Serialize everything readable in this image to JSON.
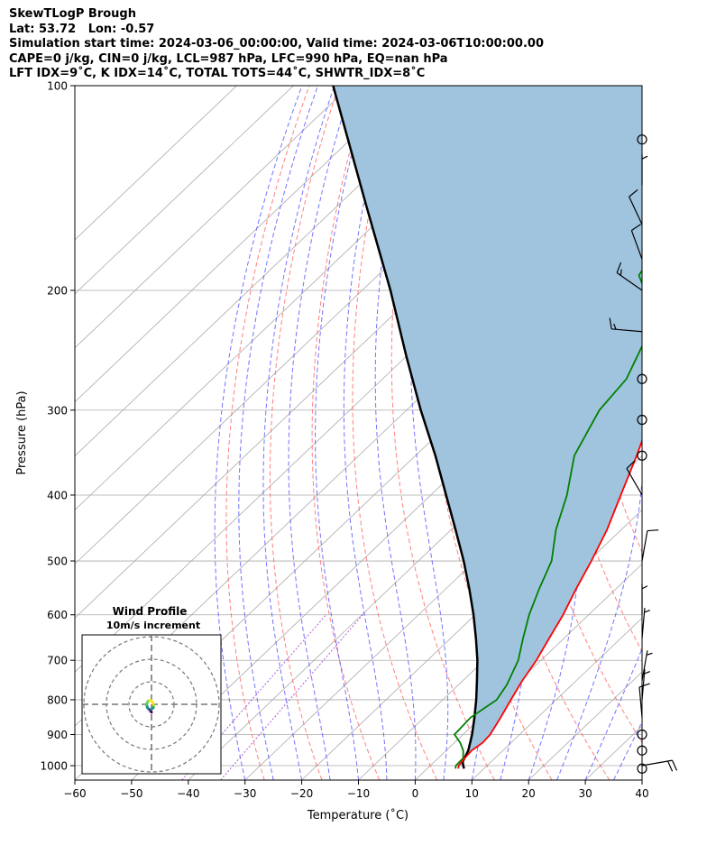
{
  "header": {
    "line1": "SkewTLogP Brough",
    "line2": "Lat: 53.72   Lon: -0.57",
    "line3": "Simulation start time: 2024-03-06_00:00:00, Valid time: 2024-03-06T10:00:00.00",
    "line4": "CAPE=0 j/kg, CIN=0 j/kg, LCL=987 hPa, LFC=990 hPa, EQ=nan hPa",
    "line5": "LFT IDX=9˚C, K IDX=14˚C, TOTAL TOTS=44˚C, SHWTR_IDX=8˚C"
  },
  "chart_data": {
    "type": "line",
    "xlabel": "Temperature (˚C)",
    "ylabel": "Pressure (hPa)",
    "xlim": [
      -60,
      40
    ],
    "ylim": [
      1050,
      100
    ],
    "y_scale": "log",
    "x_ticks": [
      "−60",
      "−50",
      "−40",
      "−30",
      "−20",
      "−10",
      "0",
      "10",
      "20",
      "30",
      "40"
    ],
    "x_tick_values": [
      -60,
      -50,
      -40,
      -30,
      -20,
      -10,
      0,
      10,
      20,
      30,
      40
    ],
    "y_ticks": [
      100,
      200,
      300,
      400,
      500,
      600,
      700,
      800,
      900,
      1000
    ],
    "grid": true,
    "colors": {
      "temperature": "#ff0000",
      "dewpoint": "#008000",
      "parcel": "#000000",
      "cape_fill": "#a0c4de",
      "dry_adiabats": "#ff5555",
      "moist_adiabats": "#4444ff",
      "mixing_ratio": "#9933cc",
      "isotherms": "#aaaaaa"
    },
    "series": [
      {
        "role": "temperature",
        "pressure": [
          1010,
          1000,
          975,
          950,
          925,
          900,
          850,
          800,
          750,
          700,
          650,
          600,
          550,
          500,
          450,
          400,
          350,
          300,
          270,
          250,
          230,
          200,
          170,
          150,
          130,
          115,
          100
        ],
        "values": [
          5.5,
          5.0,
          4.7,
          4.5,
          5.0,
          4.8,
          3.5,
          2.0,
          0.5,
          -0.8,
          -2.6,
          -4.5,
          -7.0,
          -9.5,
          -12.5,
          -16.5,
          -21.0,
          -26.5,
          -29.5,
          -31.5,
          -32.5,
          -33.0,
          -33.0,
          -34.5,
          -36.5,
          -40.0,
          -44.0
        ]
      },
      {
        "role": "dewpoint",
        "pressure": [
          1010,
          1000,
          975,
          950,
          925,
          900,
          850,
          800,
          760,
          700,
          650,
          600,
          550,
          500,
          450,
          400,
          350,
          300,
          270,
          240,
          210,
          190,
          175,
          160,
          150,
          100
        ],
        "values": [
          5.0,
          4.5,
          4.4,
          3.0,
          1.0,
          -1.5,
          -1.8,
          -0.5,
          -1.5,
          -4.0,
          -7.2,
          -10.5,
          -13.5,
          -16.5,
          -21.5,
          -26.0,
          -32.0,
          -36.0,
          -37.0,
          -40.5,
          -46.5,
          -54.0,
          -55.5,
          -56.0,
          -56.5,
          -58.0
        ]
      },
      {
        "role": "parcel",
        "pressure": [
          1010,
          1000,
          987,
          950,
          900,
          850,
          800,
          750,
          700,
          650,
          600,
          550,
          500,
          450,
          400,
          350,
          300,
          250,
          200,
          150,
          100
        ],
        "values": [
          6.5,
          5.8,
          5.0,
          3.9,
          1.6,
          -1.1,
          -4.1,
          -7.5,
          -11.2,
          -15.5,
          -20.3,
          -25.8,
          -32.0,
          -39.2,
          -47.3,
          -56.5,
          -67.5,
          -80.0,
          -95.0,
          -115.0,
          -143.0
        ]
      }
    ],
    "wind_barbs": [
      {
        "pressure": 1010,
        "calm": true
      },
      {
        "pressure": 1000,
        "speed_kt": 20,
        "dir_deg": 80
      },
      {
        "pressure": 950,
        "calm": true
      },
      {
        "pressure": 900,
        "calm": true
      },
      {
        "pressure": 850,
        "speed_kt": 10,
        "dir_deg": 355
      },
      {
        "pressure": 800,
        "speed_kt": 5,
        "dir_deg": 5
      },
      {
        "pressure": 750,
        "speed_kt": 5,
        "dir_deg": 10
      },
      {
        "pressure": 650,
        "speed_kt": 5,
        "dir_deg": 5
      },
      {
        "pressure": 600,
        "speed_kt": 5,
        "dir_deg": 0
      },
      {
        "pressure": 500,
        "speed_kt": 10,
        "dir_deg": 10
      },
      {
        "pressure": 400,
        "speed_kt": 10,
        "dir_deg": 330
      },
      {
        "pressure": 350,
        "calm": true
      },
      {
        "pressure": 310,
        "calm": true
      },
      {
        "pressure": 270,
        "calm": true
      },
      {
        "pressure": 230,
        "speed_kt": 15,
        "dir_deg": 275
      },
      {
        "pressure": 200,
        "speed_kt": 15,
        "dir_deg": 305
      },
      {
        "pressure": 180,
        "speed_kt": 10,
        "dir_deg": 340
      },
      {
        "pressure": 160,
        "speed_kt": 10,
        "dir_deg": 335
      },
      {
        "pressure": 140,
        "speed_kt": 5,
        "dir_deg": 0
      },
      {
        "pressure": 120,
        "calm": true
      }
    ],
    "inset": {
      "title": "Wind Profile",
      "subtitle": "10m/s increment",
      "rings": [
        10,
        20,
        30
      ],
      "hodograph_u": [
        0.0,
        -0.8,
        -1.8,
        -2.2,
        -1.5,
        -0.5,
        0.5,
        1.0,
        0.8,
        0.2
      ],
      "hodograph_v": [
        -3.5,
        -2.5,
        -1.5,
        0.0,
        1.5,
        1.8,
        1.0,
        -0.5,
        -1.5,
        -2.0
      ],
      "hodograph_colors": [
        "#440154",
        "#3b528b",
        "#21918c",
        "#5ec962",
        "#a5db36",
        "#fde725",
        "#fde725",
        "#a5db36",
        "#21918c",
        "#440154"
      ]
    }
  }
}
